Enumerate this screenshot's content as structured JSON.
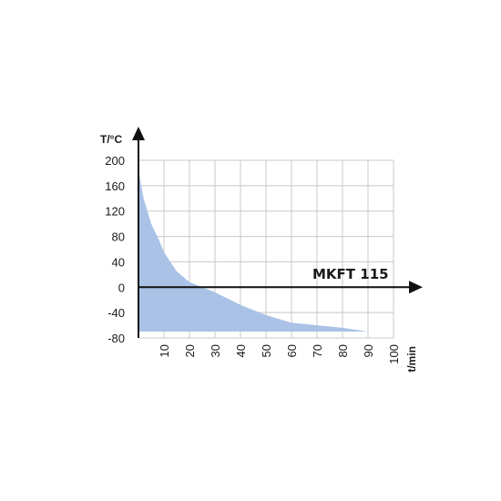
{
  "chart_data": {
    "type": "area",
    "title": "",
    "xlabel": "t/min",
    "ylabel": "T/°C",
    "annotation": "MKFT 115",
    "xlim": [
      0,
      100
    ],
    "ylim": [
      -80,
      200
    ],
    "x_ticks": [
      "10",
      "20",
      "30",
      "40",
      "50",
      "60",
      "70",
      "80",
      "90",
      "100"
    ],
    "y_ticks": [
      "200",
      "160",
      "120",
      "80",
      "40",
      "0",
      "-40",
      "-80"
    ],
    "x_tick_values": [
      10,
      20,
      30,
      40,
      50,
      60,
      70,
      80,
      90,
      100
    ],
    "y_tick_values": [
      200,
      160,
      120,
      80,
      40,
      0,
      -40,
      -80
    ],
    "grid": true,
    "fill_baseline": -70,
    "series": [
      {
        "x": [
          0,
          2,
          5,
          8,
          10,
          15,
          20,
          25,
          30,
          35,
          40,
          45,
          50,
          55,
          60,
          70,
          80,
          90
        ],
        "y": [
          185,
          140,
          100,
          75,
          55,
          25,
          8,
          0,
          -8,
          -18,
          -28,
          -36,
          -44,
          -50,
          -56,
          -60,
          -64,
          -70
        ]
      }
    ],
    "colors": {
      "fill": "#a9c2e6",
      "grid": "#c8c8c8",
      "axis": "#111111"
    }
  }
}
